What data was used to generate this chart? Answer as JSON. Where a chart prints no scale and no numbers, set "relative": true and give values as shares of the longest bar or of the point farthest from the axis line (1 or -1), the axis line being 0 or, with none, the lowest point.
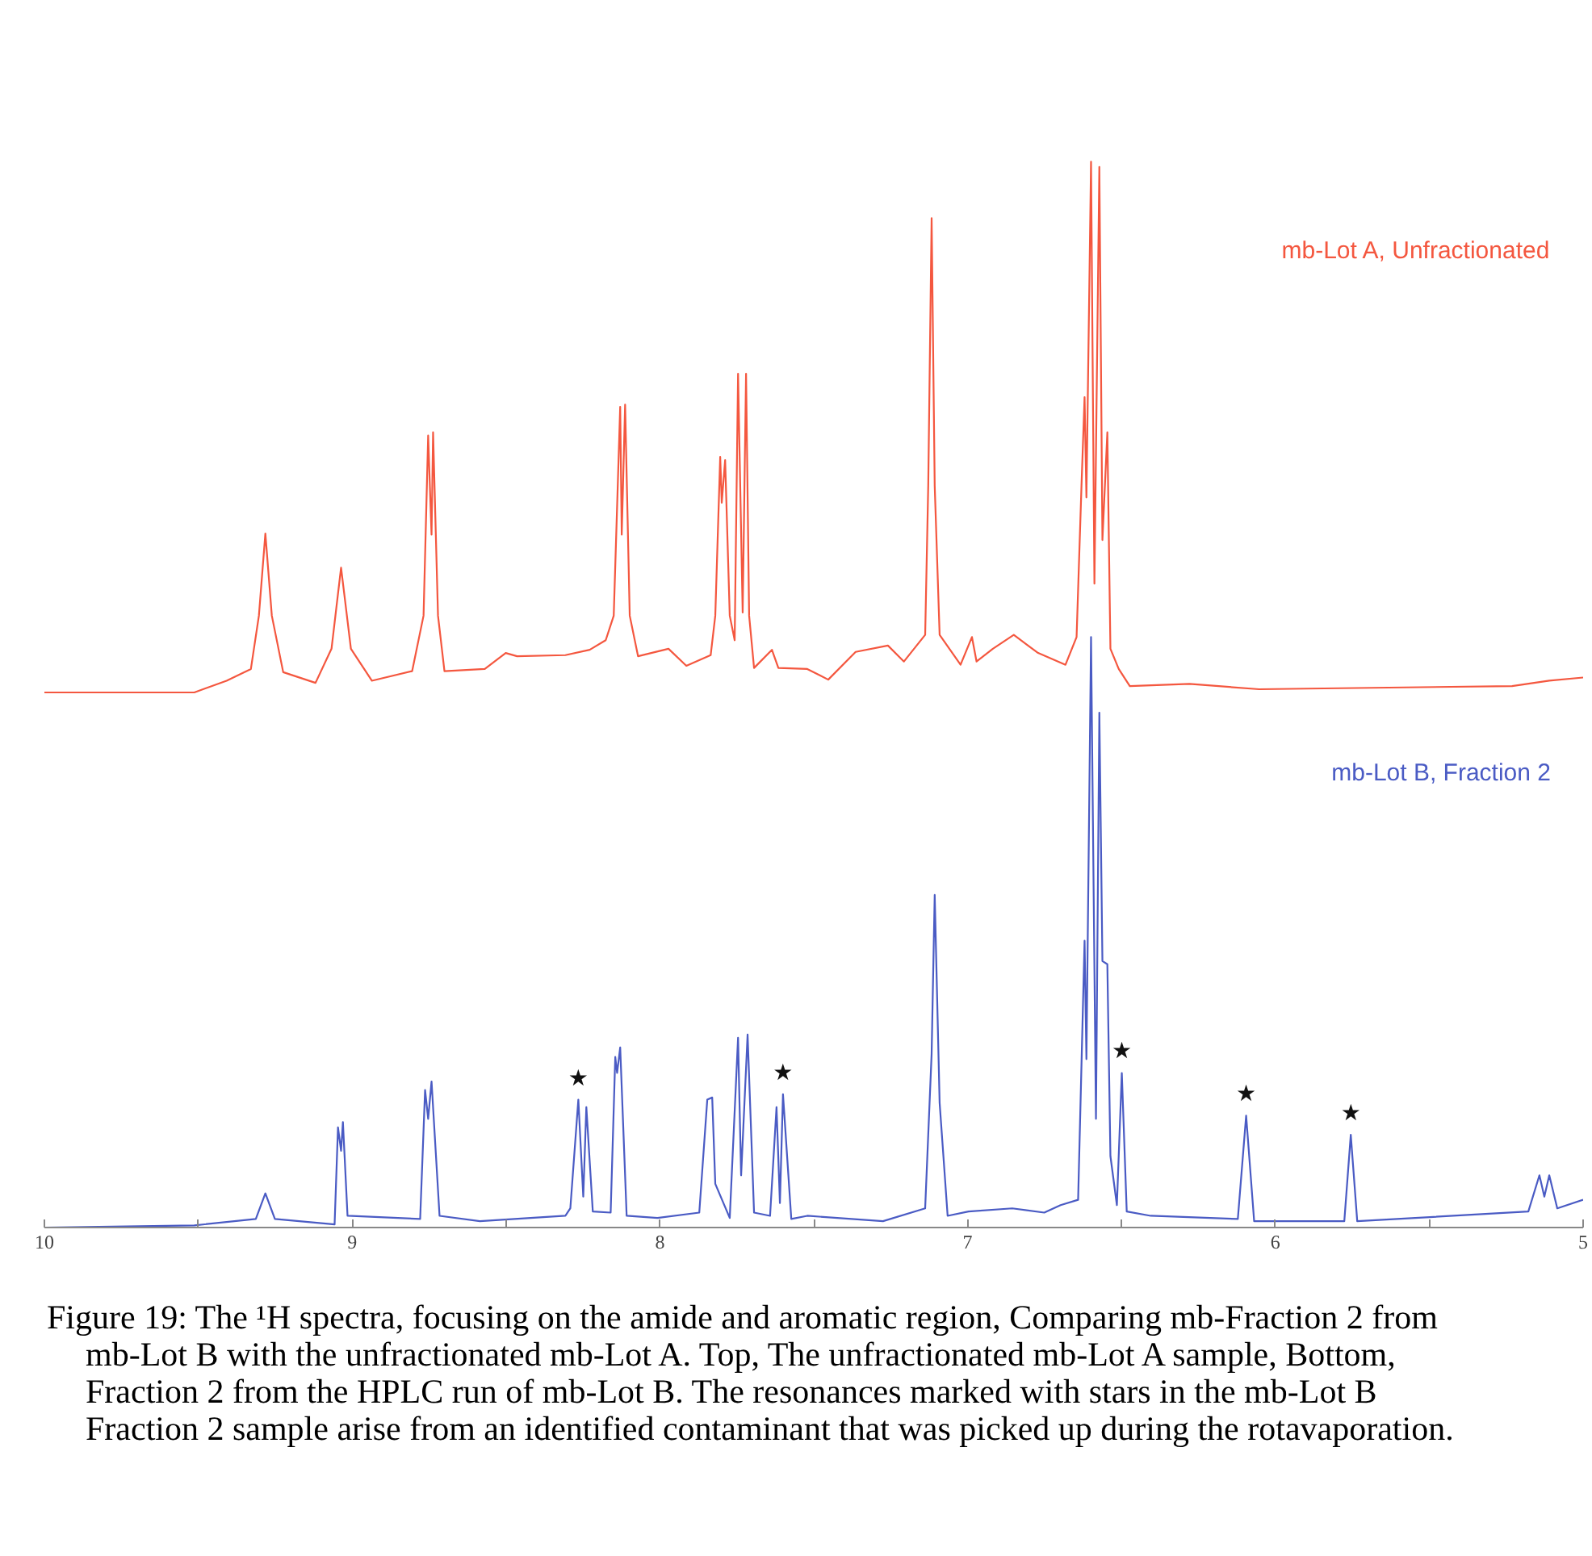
{
  "chart_data": {
    "type": "line",
    "relative": true,
    "xlim": [
      10,
      5
    ],
    "xticks": [
      10,
      {
        "value": 9.5,
        "label": null
      },
      9,
      {
        "value": 8.5,
        "label": null
      },
      8,
      {
        "value": 7.5,
        "label": null
      },
      7,
      {
        "value": 6.5,
        "label": null
      },
      6,
      {
        "value": 5.5,
        "label": null
      },
      5
    ],
    "series": [
      {
        "name": "mb-Lot A, Unfractionated",
        "color": "#f4573f",
        "x": [
          10.0,
          9.513,
          9.408,
          9.329,
          9.303,
          9.282,
          9.261,
          9.224,
          9.119,
          9.067,
          9.036,
          9.004,
          8.936,
          8.805,
          8.768,
          8.753,
          8.742,
          8.737,
          8.721,
          8.7,
          8.569,
          8.501,
          8.464,
          8.307,
          8.228,
          8.176,
          8.15,
          8.129,
          8.124,
          8.113,
          8.098,
          8.071,
          7.972,
          7.914,
          7.835,
          7.82,
          7.804,
          7.799,
          7.788,
          7.773,
          7.757,
          7.746,
          7.731,
          7.72,
          7.71,
          7.694,
          7.636,
          7.615,
          7.521,
          7.453,
          7.364,
          7.259,
          7.207,
          7.138,
          7.128,
          7.117,
          7.107,
          7.091,
          7.023,
          6.986,
          6.971,
          6.918,
          6.85,
          6.771,
          6.682,
          6.646,
          6.63,
          6.62,
          6.614,
          6.599,
          6.588,
          6.572,
          6.562,
          6.546,
          6.536,
          6.509,
          6.473,
          6.279,
          6.053,
          5.231,
          5.11,
          5.0
        ],
        "values": [
          0.502,
          0.502,
          0.513,
          0.524,
          0.574,
          0.651,
          0.574,
          0.521,
          0.511,
          0.543,
          0.619,
          0.543,
          0.513,
          0.522,
          0.574,
          0.743,
          0.65,
          0.746,
          0.574,
          0.522,
          0.524,
          0.539,
          0.536,
          0.537,
          0.542,
          0.551,
          0.574,
          0.77,
          0.65,
          0.772,
          0.574,
          0.536,
          0.543,
          0.527,
          0.537,
          0.574,
          0.723,
          0.68,
          0.72,
          0.574,
          0.551,
          0.801,
          0.577,
          0.801,
          0.574,
          0.525,
          0.542,
          0.525,
          0.524,
          0.514,
          0.54,
          0.546,
          0.531,
          0.556,
          0.696,
          0.947,
          0.696,
          0.556,
          0.528,
          0.554,
          0.531,
          0.543,
          0.556,
          0.539,
          0.528,
          0.554,
          0.696,
          0.779,
          0.685,
          1.0,
          0.604,
          0.995,
          0.645,
          0.746,
          0.543,
          0.524,
          0.508,
          0.51,
          0.505,
          0.508,
          0.513,
          0.516
        ]
      },
      {
        "name": "mb-Lot B, Fraction 2",
        "color": "#4a5bc4",
        "x": [
          10.0,
          9.513,
          9.313,
          9.282,
          9.251,
          9.057,
          9.046,
          9.036,
          9.03,
          9.015,
          8.779,
          8.763,
          8.753,
          8.742,
          8.716,
          8.585,
          8.307,
          8.291,
          8.265,
          8.249,
          8.239,
          8.218,
          8.16,
          8.145,
          8.139,
          8.129,
          8.108,
          8.008,
          7.872,
          7.846,
          7.83,
          7.82,
          7.773,
          7.746,
          7.736,
          7.715,
          7.694,
          7.642,
          7.621,
          7.61,
          7.6,
          7.573,
          7.521,
          7.275,
          7.138,
          7.117,
          7.107,
          7.091,
          7.065,
          6.997,
          6.855,
          6.751,
          6.698,
          6.641,
          6.62,
          6.614,
          6.599,
          6.583,
          6.572,
          6.562,
          6.546,
          6.536,
          6.515,
          6.499,
          6.483,
          6.405,
          6.122,
          6.095,
          6.069,
          5.776,
          5.755,
          5.734,
          5.178,
          5.142,
          5.126,
          5.11,
          5.084,
          5.0
        ],
        "values": [
          0.0,
          0.002,
          0.008,
          0.032,
          0.008,
          0.003,
          0.094,
          0.072,
          0.099,
          0.011,
          0.008,
          0.129,
          0.102,
          0.137,
          0.011,
          0.006,
          0.011,
          0.018,
          0.12,
          0.029,
          0.113,
          0.015,
          0.014,
          0.16,
          0.145,
          0.169,
          0.011,
          0.009,
          0.014,
          0.12,
          0.122,
          0.041,
          0.009,
          0.178,
          0.049,
          0.181,
          0.014,
          0.011,
          0.113,
          0.023,
          0.125,
          0.008,
          0.011,
          0.006,
          0.018,
          0.163,
          0.312,
          0.117,
          0.011,
          0.015,
          0.018,
          0.014,
          0.021,
          0.026,
          0.269,
          0.158,
          0.554,
          0.102,
          0.483,
          0.25,
          0.247,
          0.067,
          0.021,
          0.145,
          0.015,
          0.011,
          0.008,
          0.105,
          0.006,
          0.006,
          0.087,
          0.006,
          0.015,
          0.049,
          0.029,
          0.049,
          0.018,
          0.026
        ]
      }
    ],
    "annotations": [
      {
        "text": "★",
        "x": 8.265,
        "y": 0.12
      },
      {
        "text": "★",
        "x": 7.6,
        "y": 0.125
      },
      {
        "text": "★",
        "x": 6.499,
        "y": 0.145
      },
      {
        "text": "★",
        "x": 6.095,
        "y": 0.105
      },
      {
        "text": "★",
        "x": 5.755,
        "y": 0.087
      },
      "Figure 19: The ¹H spectra, focusing on the amide and aromatic region, Comparing mb-Fraction 2 from mb-Lot B with the unfractionated mb-Lot A. Top, The unfractionated mb-Lot A sample, Bottom, Fraction 2 from the HPLC run of mb-Lot B.  The resonances marked with stars in the mb-Lot B Fraction 2 sample arise from an identified contaminant that was picked up during the rotavaporation."
    ]
  }
}
